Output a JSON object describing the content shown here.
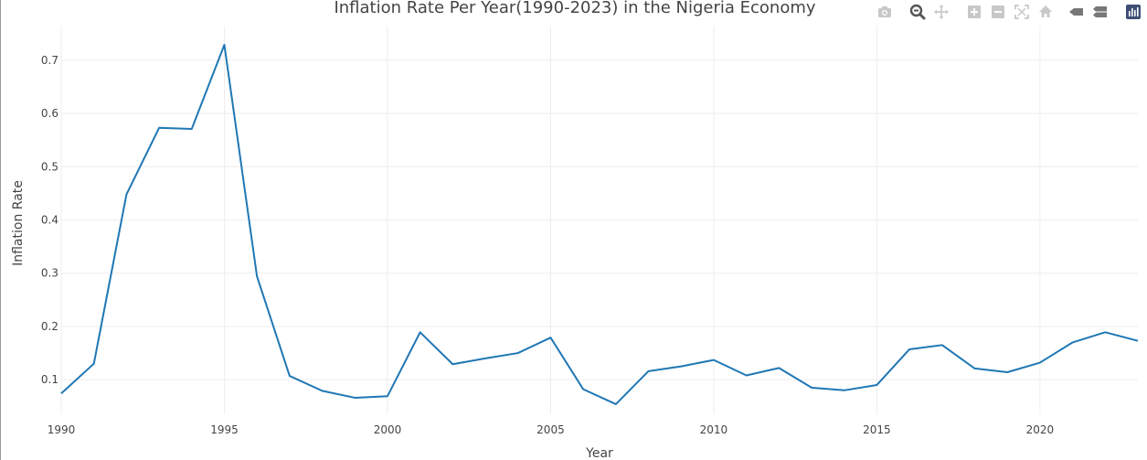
{
  "chart_data": {
    "type": "line",
    "title": "Inflation Rate Per Year(1990-2023) in the Nigeria Economy",
    "xlabel": "Year",
    "ylabel": "Inflation Rate",
    "xlim": [
      1990,
      2023
    ],
    "ylim": [
      0.035,
      0.765
    ],
    "x_ticks": [
      1990,
      1995,
      2000,
      2005,
      2010,
      2015,
      2020
    ],
    "y_ticks": [
      0.1,
      0.2,
      0.3,
      0.4,
      0.5,
      0.6,
      0.7
    ],
    "y_tick_labels": [
      "0.1",
      "0.2",
      "0.3",
      "0.4",
      "0.5",
      "0.6",
      "0.7"
    ],
    "grid": true,
    "series": [
      {
        "color": "#1f77b4",
        "x": [
          1990,
          1991,
          1992,
          1993,
          1994,
          1995,
          1996,
          1997,
          1998,
          1999,
          2000,
          2001,
          2002,
          2003,
          2004,
          2005,
          2006,
          2007,
          2008,
          2009,
          2010,
          2011,
          2012,
          2013,
          2014,
          2015,
          2016,
          2017,
          2018,
          2019,
          2020,
          2021,
          2022,
          2023
        ],
        "y": [
          0.074,
          0.13,
          0.448,
          0.573,
          0.571,
          0.729,
          0.294,
          0.107,
          0.079,
          0.066,
          0.069,
          0.189,
          0.129,
          0.14,
          0.15,
          0.179,
          0.082,
          0.054,
          0.116,
          0.125,
          0.137,
          0.108,
          0.122,
          0.085,
          0.08,
          0.09,
          0.157,
          0.165,
          0.121,
          0.114,
          0.132,
          0.17,
          0.189,
          0.173
        ]
      }
    ]
  },
  "modebar": {
    "icons": [
      "camera-icon",
      "zoom-icon",
      "pan-icon",
      "zoom-in-icon",
      "zoom-out-icon",
      "autoscale-icon",
      "reset-axes-icon",
      "hover-closest-icon",
      "hover-compare-icon",
      "plotly-logo-icon"
    ]
  }
}
